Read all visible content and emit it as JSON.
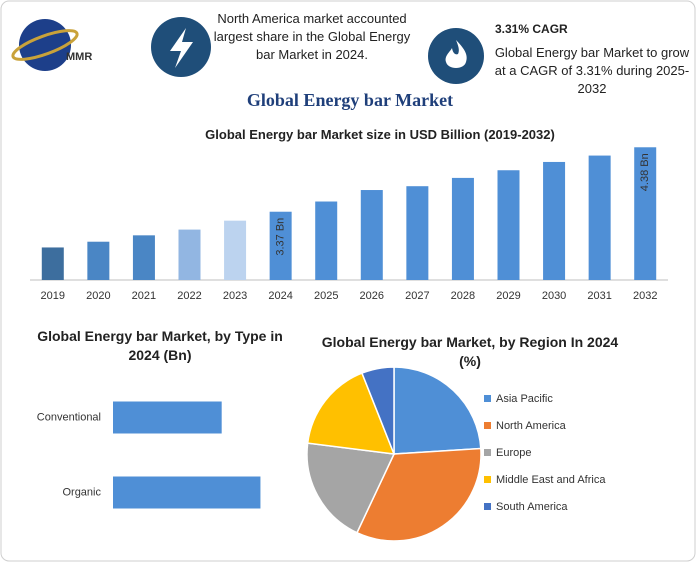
{
  "header": {
    "logo": "MMR",
    "note": "North America market accounted largest share in the Global Energy bar Market in 2024.",
    "cagr_title": "3.31% CAGR",
    "cagr_text": "Global Energy bar Market to grow at a CAGR of 3.31% during 2025-2032",
    "title": "Global Energy bar Market"
  },
  "chart_data": [
    {
      "type": "bar",
      "title": "Global Energy bar Market size in USD Billion (2019-2032)",
      "categories": [
        "2019",
        "2020",
        "2021",
        "2022",
        "2023",
        "2024",
        "2025",
        "2026",
        "2027",
        "2028",
        "2029",
        "2030",
        "2031",
        "2032"
      ],
      "values": [
        2.81,
        2.9,
        3.0,
        3.09,
        3.23,
        3.37,
        3.53,
        3.71,
        3.77,
        3.9,
        4.02,
        4.15,
        4.25,
        4.38
      ],
      "value_labels": [
        null,
        null,
        null,
        null,
        null,
        "3.37 Bn",
        null,
        null,
        null,
        null,
        null,
        null,
        null,
        "4.38 Bn"
      ],
      "colors": [
        "#3d6e9e",
        "#4a86c5",
        "#4a86c5",
        "#92b6e2",
        "#bcd3ef",
        "#4f8fd6",
        "#4f8fd6",
        "#4f8fd6",
        "#4f8fd6",
        "#4f8fd6",
        "#4f8fd6",
        "#4f8fd6",
        "#4f8fd6",
        "#4f8fd6"
      ],
      "ylim": [
        2.3,
        4.4
      ]
    },
    {
      "type": "bar",
      "horizontal": true,
      "title": "Global Energy bar Market, by Type in 2024 (Bn)",
      "categories": [
        "Conventional",
        "Organic"
      ],
      "values": [
        1.43,
        1.94
      ],
      "color": "#4f8fd6",
      "xlim": [
        0,
        2.5
      ]
    },
    {
      "type": "pie",
      "title": "Global Energy bar Market, by Region In 2024 (%)",
      "categories": [
        "Asia Pacific",
        "North America",
        "Europe",
        "Middle East and Africa",
        "South America"
      ],
      "values": [
        24,
        33,
        20,
        17,
        6
      ],
      "colors": [
        "#4f8fd6",
        "#ed7d31",
        "#a5a5a5",
        "#ffc000",
        "#4472c4"
      ],
      "legend": "right"
    }
  ]
}
